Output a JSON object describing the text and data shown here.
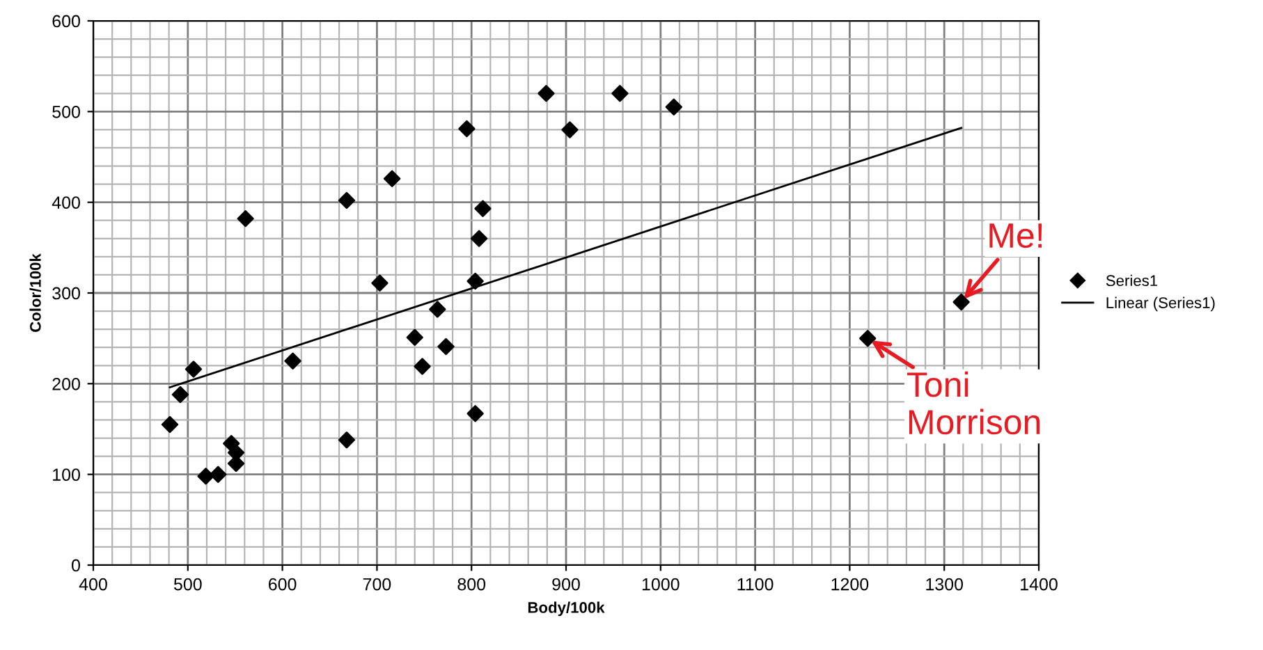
{
  "chart_data": {
    "type": "scatter",
    "xlabel": "Body/100k",
    "ylabel": "Color/100k",
    "xlim": [
      400,
      1400
    ],
    "xticks": [
      400,
      500,
      600,
      700,
      800,
      900,
      1000,
      1100,
      1200,
      1300,
      1400
    ],
    "ylim": [
      0,
      600
    ],
    "yticks": [
      0,
      100,
      200,
      300,
      400,
      500,
      600
    ],
    "grid": true,
    "legend": "right",
    "series": [
      {
        "name": "Series1",
        "marker": "diamond",
        "color": "#000000",
        "x": [
          481,
          492,
          506,
          519,
          532,
          546,
          551,
          551,
          561,
          611,
          668,
          668,
          703,
          716,
          740,
          748,
          764,
          773,
          795,
          804,
          804,
          808,
          812,
          879,
          904,
          957,
          1014,
          1219,
          1318
        ],
        "values": [
          155,
          188,
          216,
          98,
          100,
          134,
          124,
          112,
          382,
          225,
          138,
          402,
          311,
          426,
          251,
          219,
          282,
          241,
          481,
          167,
          313,
          360,
          393,
          520,
          480,
          520,
          505,
          250,
          290
        ]
      },
      {
        "name": "Linear (Series1)",
        "type": "line",
        "marker": "none",
        "color": "#000000",
        "x": [
          481,
          1318
        ],
        "values": [
          196,
          482
        ]
      }
    ],
    "annotations": [
      {
        "text": "Me!",
        "x": 1318,
        "y": 290
      },
      {
        "text": "Toni\nMorrison",
        "x": 1219,
        "y": 250
      }
    ]
  }
}
